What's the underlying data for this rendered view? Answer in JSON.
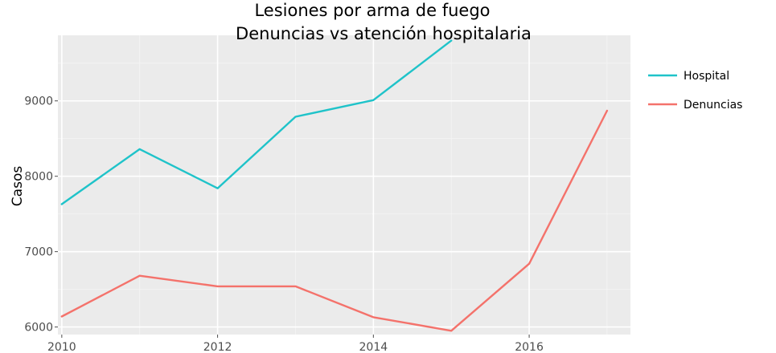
{
  "chart_data": {
    "type": "line",
    "title": "Lesiones por arma de fuego",
    "subtitle": "Denuncias vs atención hospitalaria",
    "xlabel": "",
    "ylabel": "Casos",
    "xlim": [
      2009.95,
      2017.3
    ],
    "ylim": [
      5900,
      9870
    ],
    "x_ticks": [
      2010,
      2012,
      2014,
      2016
    ],
    "y_ticks": [
      6000,
      7000,
      8000,
      9000
    ],
    "grid": true,
    "legend_position": "right",
    "series": [
      {
        "name": "Hospital",
        "color": "#1fc3c9",
        "x": [
          2010,
          2011,
          2012,
          2013,
          2014,
          2015
        ],
        "values": [
          7630,
          8360,
          7840,
          8790,
          9010,
          9800
        ]
      },
      {
        "name": "Denuncias",
        "color": "#f4726b",
        "x": [
          2010,
          2011,
          2012,
          2013,
          2014,
          2015,
          2016,
          2017
        ],
        "values": [
          6140,
          6680,
          6540,
          6540,
          6130,
          5950,
          6840,
          8870
        ]
      }
    ]
  }
}
